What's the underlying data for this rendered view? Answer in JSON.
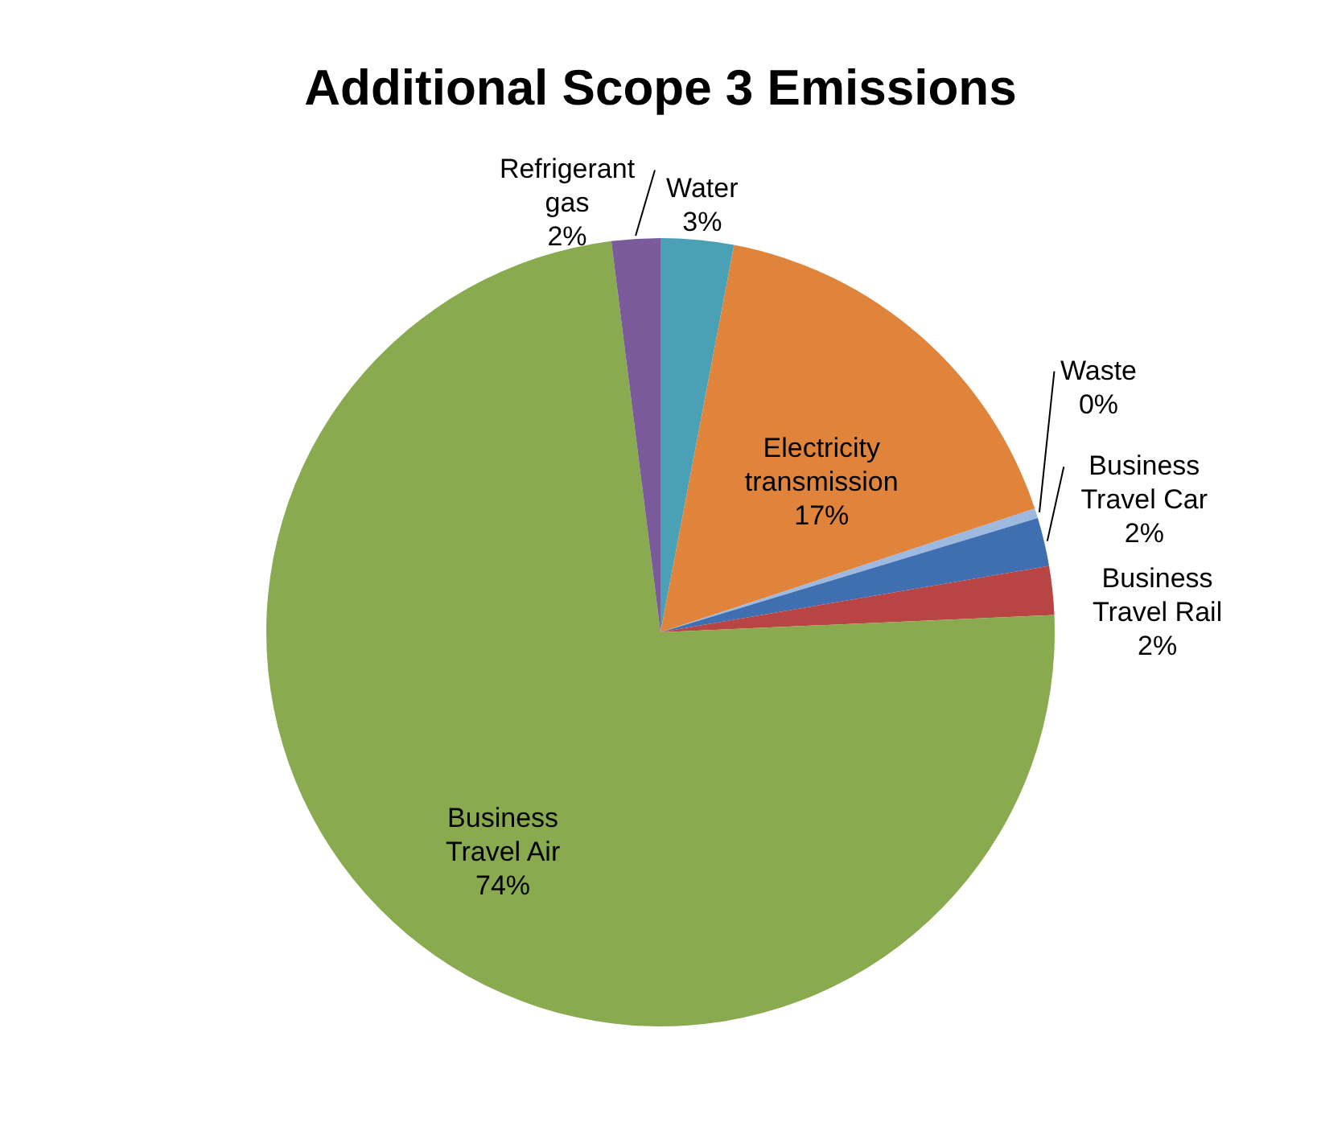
{
  "chart_data": {
    "type": "pie",
    "title": "Additional Scope 3 Emissions",
    "categories": [
      "Water",
      "Electricity transmission",
      "Waste",
      "Business Travel Car",
      "Business Travel Rail",
      "Business Travel Air",
      "Refrigerant gas"
    ],
    "values": [
      3,
      17,
      0.4,
      2,
      2,
      74,
      2
    ],
    "colors": [
      "#4aa0b5",
      "#e0843c",
      "#9db9e0",
      "#3f6fb0",
      "#b84444",
      "#8aaa4f",
      "#7a5a9a"
    ],
    "value_labels": [
      "3%",
      "17%",
      "0%",
      "2%",
      "2%",
      "74%",
      "2%"
    ]
  }
}
